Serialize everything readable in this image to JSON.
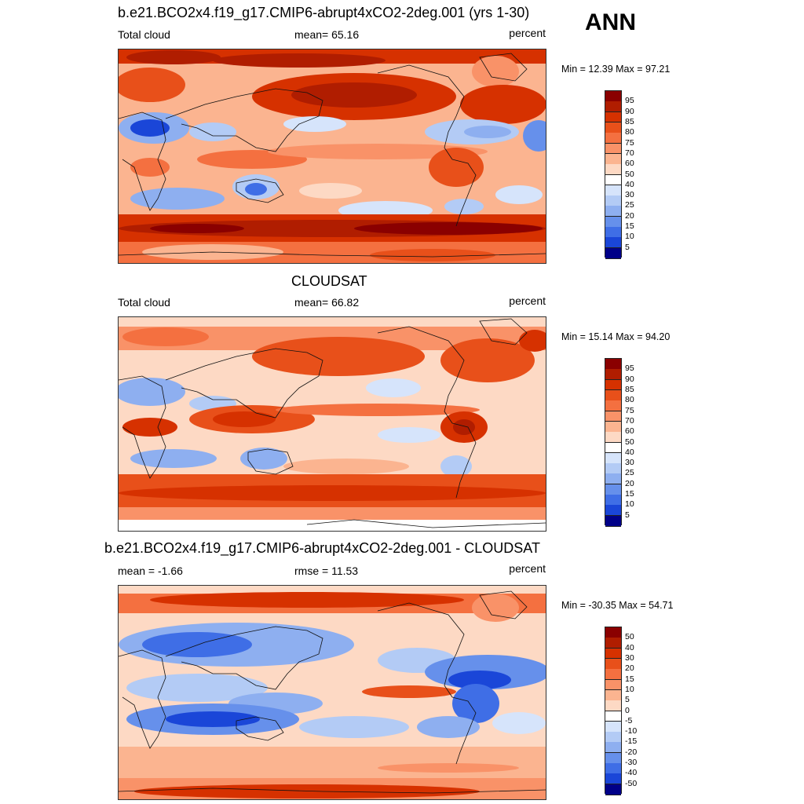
{
  "season": "ANN",
  "panels": [
    {
      "id": "model",
      "title": "b.e21.BCO2x4.f19_g17.CMIP6-abrupt4xCO2-2deg.001 (yrs 1-30)",
      "left_label": "Total cloud",
      "mid_label": "mean=  65.16",
      "units": "percent",
      "minmax": "Min =  12.39 Max =  97.21",
      "stat": {
        "mean": 65.16,
        "min": 12.39,
        "max": 97.21
      },
      "colorbar": {
        "ticks": [
          "95",
          "90",
          "85",
          "80",
          "75",
          "70",
          "60",
          "50",
          "40",
          "30",
          "25",
          "20",
          "15",
          "10",
          "5"
        ],
        "colors": [
          "#8a0000",
          "#b01d00",
          "#d63100",
          "#e8501a",
          "#f47040",
          "#f99268",
          "#fbb490",
          "#fdd9c4",
          "#ffffff",
          "#d6e4fb",
          "#b3cbf5",
          "#8eaff0",
          "#6690eb",
          "#3f6ee6",
          "#1a46d8",
          "#000088"
        ]
      }
    },
    {
      "id": "obs",
      "title": "CLOUDSAT",
      "left_label": "Total cloud",
      "mid_label": "mean=  66.82",
      "units": "percent",
      "minmax": "Min =  15.14 Max =  94.20",
      "stat": {
        "mean": 66.82,
        "min": 15.14,
        "max": 94.2
      },
      "colorbar": {
        "ticks": [
          "95",
          "90",
          "85",
          "80",
          "75",
          "70",
          "60",
          "50",
          "40",
          "30",
          "25",
          "20",
          "15",
          "10",
          "5"
        ],
        "colors": [
          "#8a0000",
          "#b01d00",
          "#d63100",
          "#e8501a",
          "#f47040",
          "#f99268",
          "#fbb490",
          "#fdd9c4",
          "#ffffff",
          "#d6e4fb",
          "#b3cbf5",
          "#8eaff0",
          "#6690eb",
          "#3f6ee6",
          "#1a46d8",
          "#000088"
        ]
      }
    },
    {
      "id": "diff",
      "title": "b.e21.BCO2x4.f19_g17.CMIP6-abrupt4xCO2-2deg.001 - CLOUDSAT",
      "left_label": "mean =  -1.66",
      "mid_label": "rmse =  11.53",
      "units": "percent",
      "minmax": "Min = -30.35 Max =  54.71",
      "stat": {
        "mean": -1.66,
        "rmse": 11.53,
        "min": -30.35,
        "max": 54.71
      },
      "colorbar": {
        "ticks": [
          "50",
          "40",
          "30",
          "20",
          "15",
          "10",
          "5",
          "0",
          "-5",
          "-10",
          "-15",
          "-20",
          "-30",
          "-40",
          "-50"
        ],
        "colors": [
          "#8a0000",
          "#b01d00",
          "#d63100",
          "#e8501a",
          "#f47040",
          "#f99268",
          "#fbb490",
          "#fdd9c4",
          "#ffffff",
          "#d6e4fb",
          "#b3cbf5",
          "#8eaff0",
          "#6690eb",
          "#3f6ee6",
          "#1a46d8",
          "#000088"
        ]
      }
    }
  ]
}
